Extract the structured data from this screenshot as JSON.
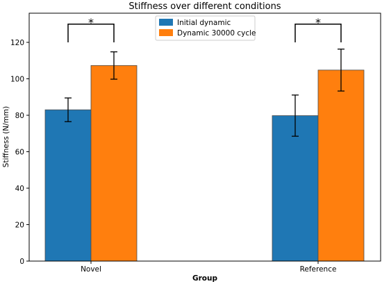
{
  "chart_data": {
    "type": "bar",
    "title": "Stiffness over different conditions",
    "xlabel": "Group",
    "ylabel": "Stiffness (N/mm)",
    "categories": [
      "Novel",
      "Reference"
    ],
    "ylim": [
      0,
      136
    ],
    "yticks": [
      0,
      20,
      40,
      60,
      80,
      100,
      120
    ],
    "series": [
      {
        "name": "Initial dynamic",
        "color": "#1f77b4",
        "values": [
          83,
          79.8
        ],
        "errors": [
          6.5,
          11.3
        ]
      },
      {
        "name": "Dynamic 30000 cycle",
        "color": "#ff7f0e",
        "values": [
          107.3,
          104.8
        ],
        "errors": [
          7.5,
          11.5
        ]
      }
    ],
    "annotations": [
      {
        "category": "Novel",
        "text": "*",
        "bracket_y": 130,
        "bracket_drop_to": 120
      },
      {
        "category": "Reference",
        "text": "*",
        "bracket_y": 130,
        "bracket_drop_to": 120
      }
    ],
    "legend": "top-center",
    "grid": false
  }
}
